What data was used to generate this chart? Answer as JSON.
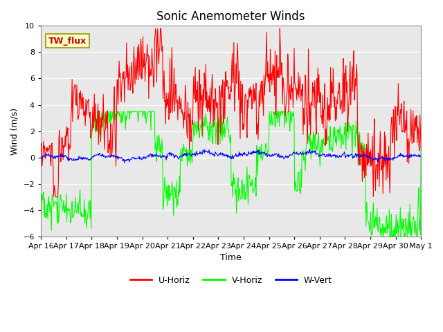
{
  "title": "Sonic Anemometer Winds",
  "xlabel": "Time",
  "ylabel": "Wind (m/s)",
  "ylim": [
    -6,
    10
  ],
  "yticks": [
    -6,
    -4,
    -2,
    0,
    2,
    4,
    6,
    8,
    10
  ],
  "x_tick_labels": [
    "Apr 16",
    "Apr 17",
    "Apr 18",
    "Apr 19",
    "Apr 20",
    "Apr 21",
    "Apr 22",
    "Apr 23",
    "Apr 24",
    "Apr 25",
    "Apr 26",
    "Apr 27",
    "Apr 28",
    "Apr 29",
    "Apr 30",
    "May 1"
  ],
  "legend_labels": [
    "U-Horiz",
    "V-Horiz",
    "W-Vert"
  ],
  "annotation_text": "TW_flux",
  "annotation_color": "#cc0000",
  "annotation_bg": "#ffffcc",
  "annotation_edge": "#999900",
  "bg_color": "#e8e8e8",
  "line_width": 0.8,
  "title_fontsize": 12,
  "axis_label_fontsize": 9,
  "tick_fontsize": 8
}
